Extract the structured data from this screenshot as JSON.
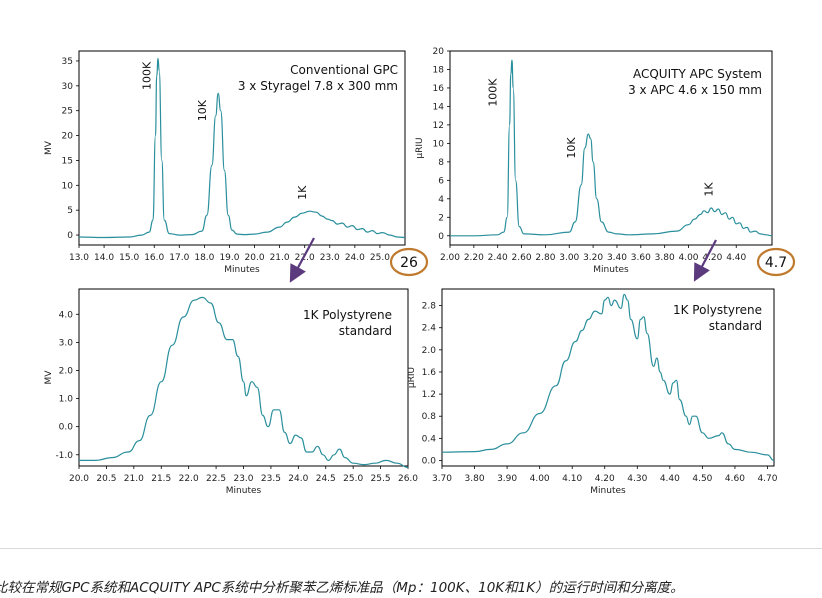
{
  "figure": {
    "highlight_color": "#c07a2e",
    "trace_color": "#2a8f9c",
    "arrow_color": "#5b3a7e"
  },
  "caption": "比较在常规GPC系统和ACQUITY APC系统中分析聚苯乙烯标准品（Mp：100K、10K和1K）的运行时间和分离度。",
  "chart_data": [
    {
      "type": "line",
      "ylabel": "MV",
      "xlabel": "Minutes",
      "xlim": [
        13.0,
        26.0
      ],
      "ylim": [
        -2,
        37
      ],
      "xticks": [
        "13.0",
        "14.0",
        "15.0",
        "16.0",
        "17.0",
        "18.0",
        "19.0",
        "20.0",
        "21.0",
        "22.0",
        "23.0",
        "24.0",
        "25.0"
      ],
      "yticks": [
        "0",
        "5",
        "10",
        "15",
        "20",
        "25",
        "30",
        "35"
      ],
      "annotation": [
        "Conventional GPC",
        "3 x Styragel 7.8 x 300 mm"
      ],
      "peak_labels": [
        {
          "text": "100K",
          "x": 16.1,
          "y": 32
        },
        {
          "text": "10K",
          "x": 18.3,
          "y": 25
        },
        {
          "text": "1K",
          "x": 22.3,
          "y": 8.5
        }
      ],
      "highlight": "26",
      "series": [
        {
          "x": [
            13.0,
            14.0,
            15.0,
            15.5,
            15.8,
            15.95,
            16.05,
            16.1,
            16.15,
            16.2,
            16.3,
            16.4,
            16.6,
            17.0,
            17.5,
            17.9,
            18.1,
            18.3,
            18.45,
            18.55,
            18.65,
            18.8,
            18.95,
            19.1,
            19.3,
            19.6,
            20.0,
            20.5,
            21.0,
            21.3,
            21.6,
            21.9,
            22.2,
            22.45,
            22.7,
            22.9,
            23.1,
            23.3,
            23.5,
            23.7,
            23.9,
            24.1,
            24.3,
            24.5,
            24.7,
            24.9,
            25.1,
            25.4,
            25.7,
            26.0
          ],
          "y": [
            -0.4,
            -0.5,
            -0.4,
            0.0,
            0.6,
            3.0,
            20.0,
            32.0,
            35.5,
            33.0,
            15.0,
            3.0,
            0.3,
            0.0,
            0.1,
            0.8,
            4.0,
            14.0,
            24.0,
            28.5,
            25.0,
            13.0,
            4.0,
            1.0,
            0.2,
            0.1,
            0.2,
            0.6,
            1.6,
            2.6,
            3.6,
            4.4,
            4.8,
            4.6,
            3.8,
            3.2,
            2.9,
            2.2,
            2.4,
            1.6,
            1.9,
            1.1,
            1.3,
            0.6,
            0.9,
            0.3,
            0.5,
            0.0,
            -0.4,
            -0.5
          ]
        }
      ]
    },
    {
      "type": "line",
      "ylabel": "µRIU",
      "xlabel": "Minutes",
      "xlim": [
        2.0,
        4.7
      ],
      "ylim": [
        -1,
        20
      ],
      "xticks": [
        "2.00",
        "2.20",
        "2.40",
        "2.60",
        "2.80",
        "3.00",
        "3.20",
        "3.40",
        "3.60",
        "3.80",
        "4.00",
        "4.20",
        "4.40"
      ],
      "yticks": [
        "0",
        "2",
        "4",
        "6",
        "8",
        "10",
        "12",
        "14",
        "16",
        "18",
        "20"
      ],
      "annotation": [
        "ACQUITY APC System",
        "3 x APC 4.6 x 150 mm"
      ],
      "peak_labels": [
        {
          "text": "100K",
          "x": 2.44,
          "y": 15.5
        },
        {
          "text": "10K",
          "x": 3.1,
          "y": 9.5
        },
        {
          "text": "1K",
          "x": 4.25,
          "y": 5
        }
      ],
      "highlight": "4.7",
      "series": [
        {
          "x": [
            2.0,
            2.2,
            2.4,
            2.45,
            2.48,
            2.5,
            2.51,
            2.52,
            2.53,
            2.55,
            2.58,
            2.62,
            2.8,
            3.0,
            3.05,
            3.1,
            3.13,
            3.16,
            3.18,
            3.2,
            3.23,
            3.27,
            3.33,
            3.4,
            3.5,
            3.7,
            3.9,
            4.0,
            4.05,
            4.1,
            4.13,
            4.16,
            4.19,
            4.22,
            4.25,
            4.28,
            4.31,
            4.34,
            4.37,
            4.4,
            4.43,
            4.46,
            4.49,
            4.52,
            4.56,
            4.6,
            4.65,
            4.7
          ],
          "y": [
            0.0,
            0.0,
            0.1,
            0.4,
            2.0,
            12.0,
            17.5,
            19.0,
            16.0,
            6.0,
            1.0,
            0.2,
            0.1,
            0.4,
            1.5,
            5.5,
            9.5,
            11.0,
            10.5,
            8.0,
            4.0,
            1.5,
            0.4,
            0.2,
            0.1,
            0.2,
            0.5,
            1.2,
            1.8,
            2.3,
            2.7,
            2.5,
            3.0,
            2.6,
            2.9,
            2.3,
            2.5,
            1.8,
            2.0,
            1.3,
            1.4,
            0.8,
            0.9,
            0.4,
            0.5,
            0.2,
            0.1,
            0.0
          ]
        }
      ]
    },
    {
      "type": "line",
      "ylabel": "MV",
      "xlabel": "Minutes",
      "xlim": [
        20.0,
        26.0
      ],
      "ylim": [
        -1.4,
        4.9
      ],
      "xticks": [
        "20.0",
        "20.5",
        "21.0",
        "21.5",
        "22.0",
        "22.5",
        "23.0",
        "23.5",
        "24.0",
        "24.5",
        "25.0",
        "25.5",
        "26.0"
      ],
      "yticks": [
        "-1.0",
        "0.0",
        "1.0",
        "2.0",
        "3.0",
        "4.0"
      ],
      "annotation": [
        "1K Polystyrene",
        "standard"
      ],
      "series": [
        {
          "x": [
            20.0,
            20.3,
            20.6,
            20.9,
            21.1,
            21.3,
            21.5,
            21.7,
            21.9,
            22.1,
            22.25,
            22.4,
            22.55,
            22.7,
            22.8,
            22.9,
            23.0,
            23.05,
            23.15,
            23.25,
            23.35,
            23.45,
            23.55,
            23.65,
            23.75,
            23.85,
            23.95,
            24.05,
            24.15,
            24.25,
            24.35,
            24.45,
            24.55,
            24.65,
            24.75,
            24.85,
            25.0,
            25.2,
            25.4,
            25.6,
            25.8,
            26.0
          ],
          "y": [
            -1.2,
            -1.2,
            -1.1,
            -0.9,
            -0.5,
            0.4,
            1.6,
            2.9,
            3.9,
            4.5,
            4.6,
            4.4,
            3.7,
            3.1,
            3.1,
            2.5,
            1.6,
            1.1,
            1.6,
            1.4,
            0.4,
            0.0,
            0.6,
            0.6,
            -0.2,
            -0.6,
            -0.3,
            -0.4,
            -0.9,
            -0.9,
            -0.7,
            -1.0,
            -1.2,
            -1.0,
            -0.8,
            -1.1,
            -1.3,
            -1.35,
            -1.3,
            -1.2,
            -1.3,
            -1.45
          ]
        }
      ]
    },
    {
      "type": "line",
      "ylabel": "µRIU",
      "xlabel": "Minutes",
      "xlim": [
        3.7,
        4.72
      ],
      "ylim": [
        -0.1,
        3.1
      ],
      "xticks": [
        "3.70",
        "3.80",
        "3.90",
        "4.00",
        "4.10",
        "4.20",
        "4.30",
        "4.40",
        "4.50",
        "4.60",
        "4.70"
      ],
      "yticks": [
        "0.0",
        "0.4",
        "0.8",
        "1.2",
        "1.6",
        "2.0",
        "2.4",
        "2.8"
      ],
      "annotation": [
        "1K Polystyrene",
        "standard"
      ],
      "series": [
        {
          "x": [
            3.7,
            3.8,
            3.85,
            3.9,
            3.95,
            4.0,
            4.05,
            4.08,
            4.11,
            4.13,
            4.15,
            4.17,
            4.19,
            4.2,
            4.21,
            4.22,
            4.23,
            4.25,
            4.26,
            4.27,
            4.28,
            4.3,
            4.31,
            4.32,
            4.33,
            4.35,
            4.36,
            4.37,
            4.38,
            4.4,
            4.41,
            4.42,
            4.43,
            4.45,
            4.46,
            4.47,
            4.48,
            4.5,
            4.52,
            4.55,
            4.56,
            4.58,
            4.6,
            4.65,
            4.7,
            4.72
          ],
          "y": [
            0.15,
            0.16,
            0.2,
            0.3,
            0.5,
            0.85,
            1.35,
            1.8,
            2.15,
            2.35,
            2.55,
            2.7,
            2.65,
            2.9,
            2.95,
            2.8,
            2.9,
            2.75,
            3.0,
            2.9,
            2.55,
            2.2,
            2.55,
            2.6,
            2.3,
            1.7,
            1.85,
            1.6,
            1.45,
            1.2,
            1.4,
            1.45,
            1.1,
            0.8,
            0.65,
            0.8,
            0.8,
            0.5,
            0.4,
            0.45,
            0.5,
            0.3,
            0.2,
            0.15,
            0.1,
            0.0
          ]
        }
      ]
    }
  ]
}
